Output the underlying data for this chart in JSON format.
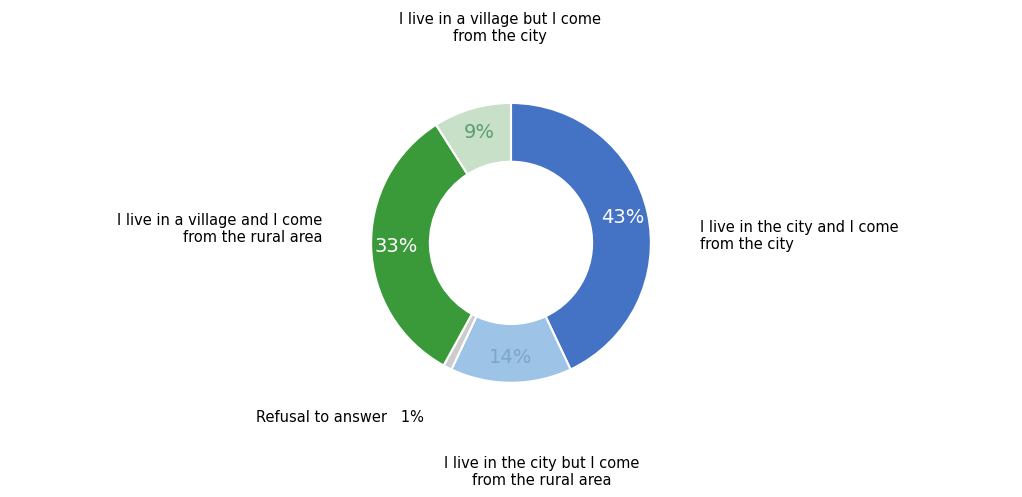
{
  "slices": [
    {
      "label": "I live in the city and I come\nfrom the city",
      "value": 43,
      "color": "#4472C4",
      "pct_label": "43%",
      "pct_color": "#FFFFFF"
    },
    {
      "label": "I live in the city but I come\nfrom the rural area",
      "value": 14,
      "color": "#9DC3E6",
      "pct_label": "14%",
      "pct_color": "#7BA7C9"
    },
    {
      "label": "Refusal to answer",
      "value": 1,
      "color": "#CCCCCC",
      "pct_label": "1%",
      "pct_color": "#888888"
    },
    {
      "label": "I live in a village and I come\nfrom the rural area",
      "value": 33,
      "color": "#3A9A3A",
      "pct_label": "33%",
      "pct_color": "#FFFFFF"
    },
    {
      "label": "I live in a village but I come\nfrom the city",
      "value": 9,
      "color": "#C8DFC8",
      "pct_label": "9%",
      "pct_color": "#5A9E6F"
    }
  ],
  "donut_width": 0.42,
  "startangle": 90,
  "figsize": [
    10.22,
    4.97
  ],
  "background_color": "#FFFFFF",
  "label_fontsize": 10.5,
  "pct_fontsize": 14
}
